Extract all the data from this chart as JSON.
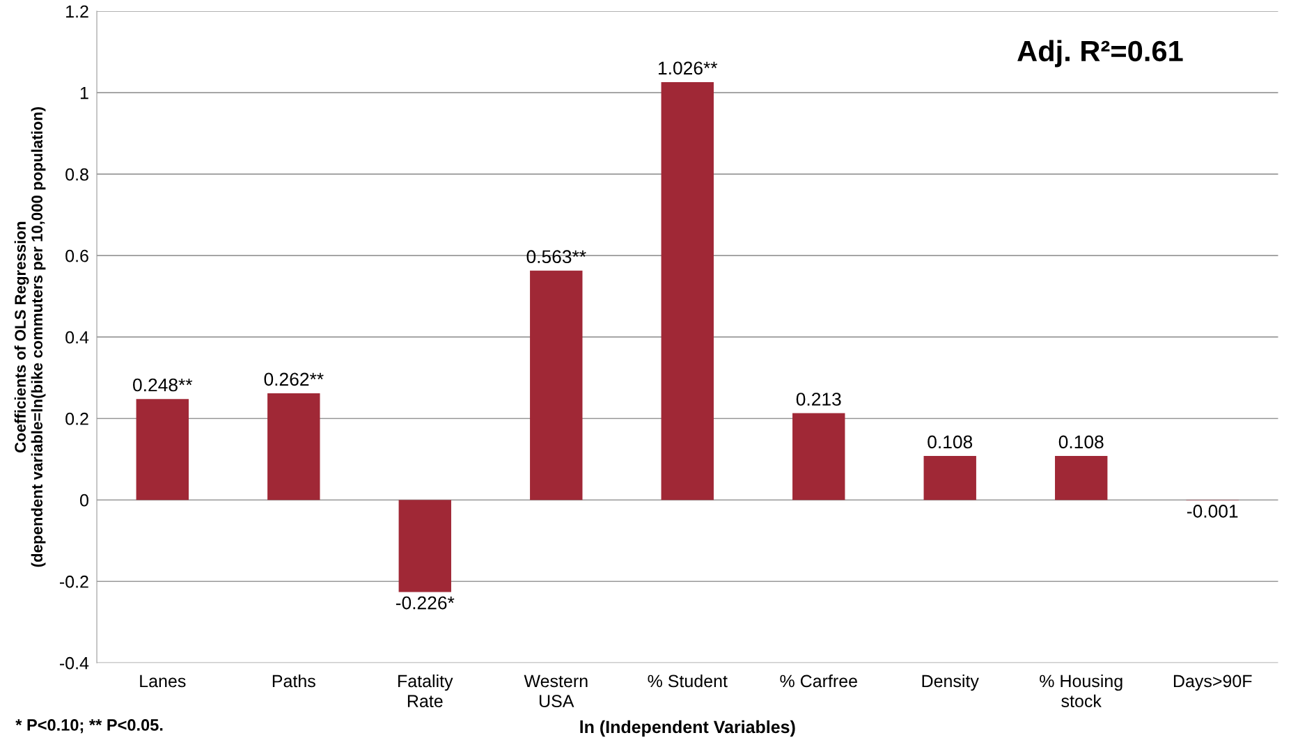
{
  "chart_data": {
    "type": "bar",
    "xlabel": "ln (Independent Variables)",
    "ylabel": "Coefficients of OLS Regression\n(dependent variable=ln(bike commuters per 10,000 population)",
    "categories": [
      "Lanes",
      "Paths",
      "Fatality\nRate",
      "Western\nUSA",
      "% Student",
      "% Carfree",
      "Density",
      "% Housing\nstock",
      "Days>90F"
    ],
    "values": [
      0.248,
      0.262,
      -0.226,
      0.563,
      1.026,
      0.213,
      0.108,
      0.108,
      -0.001
    ],
    "value_labels": [
      "0.248**",
      "0.262**",
      "-0.226*",
      "0.563**",
      "1.026**",
      "0.213",
      "0.108",
      "0.108",
      "-0.001"
    ],
    "color": "#a02836",
    "ylim": [
      -0.4,
      1.2
    ],
    "yticks": [
      -0.4,
      -0.2,
      0,
      0.2,
      0.4,
      0.6,
      0.8,
      1,
      1.2
    ],
    "grid": "y",
    "annotations": [
      "Adj. R²=0.61",
      "* P<0.10; ** P<0.05."
    ]
  }
}
